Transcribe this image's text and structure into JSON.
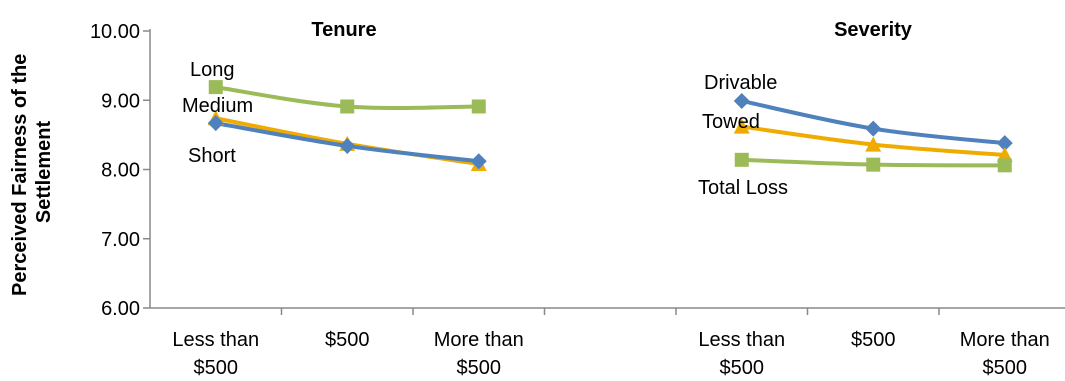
{
  "chart_data": {
    "type": "line",
    "ylabel": "Perceived Fairness of the Settlement",
    "ylim": [
      6.0,
      10.0
    ],
    "y_ticks": [
      "6.00",
      "7.00",
      "8.00",
      "9.00",
      "10.00"
    ],
    "grid": false,
    "legend": "none",
    "panels": [
      {
        "title": "Tenure",
        "categories": [
          "Less than $500",
          "$500",
          "More than $500"
        ],
        "category_lines": [
          [
            "Less than",
            "$500"
          ],
          [
            "$500"
          ],
          [
            "More than",
            "$500"
          ]
        ],
        "series": [
          {
            "name": "Long",
            "values": [
              9.19,
              8.91,
              8.91
            ],
            "color": "#9BBB59",
            "marker": "square"
          },
          {
            "name": "Medium",
            "values": [
              8.74,
              8.37,
              8.08
            ],
            "color": "#F0AB00",
            "marker": "triangle"
          },
          {
            "name": "Short",
            "values": [
              8.67,
              8.34,
              8.12
            ],
            "color": "#4F81BD",
            "marker": "diamond"
          }
        ]
      },
      {
        "title": "Severity",
        "categories": [
          "Less than $500",
          "$500",
          "More than $500"
        ],
        "category_lines": [
          [
            "Less than",
            "$500"
          ],
          [
            "$500"
          ],
          [
            "More than",
            "$500"
          ]
        ],
        "series": [
          {
            "name": "Drivable",
            "values": [
              8.99,
              8.59,
              8.38
            ],
            "color": "#4F81BD",
            "marker": "diamond"
          },
          {
            "name": "Towed",
            "values": [
              8.62,
              8.36,
              8.21
            ],
            "color": "#F0AB00",
            "marker": "triangle"
          },
          {
            "name": "Total Loss",
            "values": [
              8.14,
              8.07,
              8.06
            ],
            "color": "#9BBB59",
            "marker": "square"
          }
        ]
      }
    ]
  }
}
